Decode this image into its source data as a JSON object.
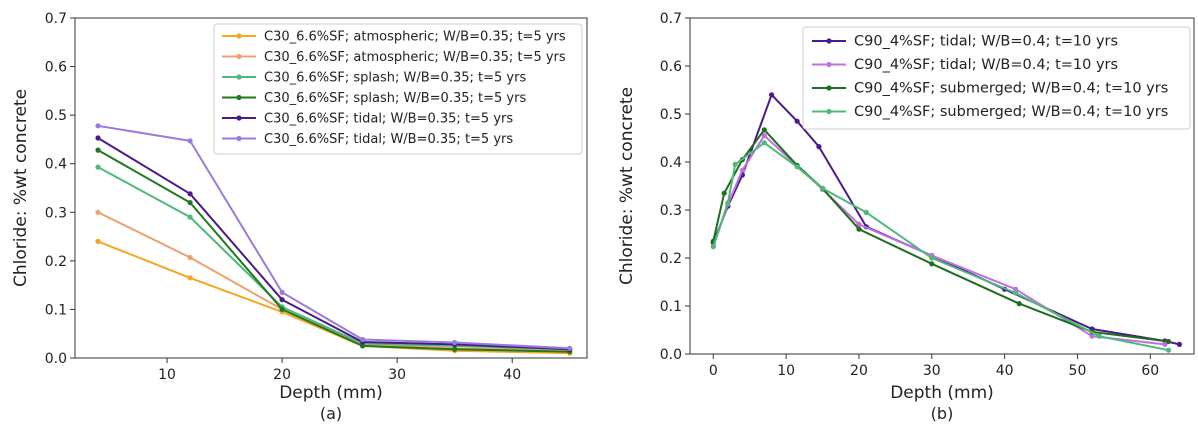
{
  "chart_data": [
    {
      "type": "line",
      "caption": "(a)",
      "xlabel": "Depth (mm)",
      "ylabel": "Chloride: %wt concrete",
      "xlim": [
        2,
        46.5
      ],
      "ylim": [
        0,
        0.7
      ],
      "xticks": [
        10,
        20,
        30,
        40
      ],
      "yticks": [
        0.0,
        0.1,
        0.2,
        0.3,
        0.4,
        0.5,
        0.6,
        0.7
      ],
      "grid": false,
      "legend_position": "top-right",
      "series": [
        {
          "name": "C30_6.6%SF; atmospheric; W/B=0.35; t=5 yrs",
          "color": "#f5a623",
          "x": [
            4,
            12,
            20,
            27,
            35,
            45
          ],
          "y": [
            0.24,
            0.165,
            0.095,
            0.025,
            0.015,
            0.01
          ]
        },
        {
          "name": "C30_6.6%SF; atmospheric; W/B=0.35; t=5 yrs",
          "color": "#f0a070",
          "x": [
            4,
            12,
            20,
            27,
            35,
            45
          ],
          "y": [
            0.3,
            0.207,
            0.1,
            0.028,
            0.02,
            0.015
          ]
        },
        {
          "name": "C30_6.6%SF; splash; W/B=0.35; t=5 yrs",
          "color": "#4fb87a",
          "x": [
            4,
            12,
            20,
            27,
            35,
            45
          ],
          "y": [
            0.393,
            0.29,
            0.105,
            0.03,
            0.025,
            0.018
          ]
        },
        {
          "name": "C30_6.6%SF; splash; W/B=0.35; t=5 yrs",
          "color": "#1e7a1e",
          "x": [
            4,
            12,
            20,
            27,
            35,
            45
          ],
          "y": [
            0.428,
            0.32,
            0.1,
            0.025,
            0.018,
            0.013
          ]
        },
        {
          "name": "C30_6.6%SF; tidal; W/B=0.35; t=5 yrs",
          "color": "#4b1a8a",
          "x": [
            4,
            12,
            20,
            27,
            35,
            45
          ],
          "y": [
            0.453,
            0.338,
            0.12,
            0.033,
            0.028,
            0.018
          ]
        },
        {
          "name": "C30_6.6%SF; tidal; W/B=0.35; t=5 yrs",
          "color": "#9b7ae0",
          "x": [
            4,
            12,
            20,
            27,
            35,
            45
          ],
          "y": [
            0.478,
            0.447,
            0.135,
            0.038,
            0.032,
            0.02
          ]
        }
      ]
    },
    {
      "type": "line",
      "caption": "(b)",
      "xlabel": "Depth (mm)",
      "ylabel": "Chloride: %wt concrete",
      "xlim": [
        -3.2,
        66
      ],
      "ylim": [
        0,
        0.7
      ],
      "xticks": [
        0,
        10,
        20,
        30,
        40,
        50,
        60
      ],
      "yticks": [
        0.0,
        0.1,
        0.2,
        0.3,
        0.4,
        0.5,
        0.6,
        0.7
      ],
      "grid": false,
      "legend_position": "top-right",
      "series": [
        {
          "name": "C90_4%SF; tidal; W/B=0.4; t=10 yrs",
          "color": "#4b1a8a",
          "x": [
            0,
            2,
            4,
            8,
            11.5,
            14.5,
            21,
            30,
            40,
            52,
            62,
            64
          ],
          "y": [
            0.232,
            0.308,
            0.373,
            0.54,
            0.485,
            0.432,
            0.265,
            0.205,
            0.135,
            0.052,
            0.027,
            0.02
          ]
        },
        {
          "name": "C90_4%SF; tidal; W/B=0.4; t=10 yrs",
          "color": "#c070e0",
          "x": [
            0,
            2,
            4,
            7,
            11.5,
            15,
            20,
            30,
            41.5,
            52,
            62
          ],
          "y": [
            0.224,
            0.312,
            0.383,
            0.455,
            0.392,
            0.343,
            0.27,
            0.205,
            0.135,
            0.037,
            0.02
          ]
        },
        {
          "name": "C90_4%SF; submerged; W/B=0.4; t=10 yrs",
          "color": "#1e6e1e",
          "x": [
            0,
            1.5,
            4,
            7,
            11.5,
            15,
            20,
            30,
            42,
            52,
            62.5
          ],
          "y": [
            0.235,
            0.335,
            0.405,
            0.467,
            0.393,
            0.345,
            0.26,
            0.188,
            0.105,
            0.046,
            0.026
          ]
        },
        {
          "name": "C90_4%SF; submerged; W/B=0.4; t=10 yrs",
          "color": "#4fb87a",
          "x": [
            0,
            2,
            3,
            7,
            11.5,
            15,
            21,
            30,
            41.5,
            53,
            62.5
          ],
          "y": [
            0.224,
            0.315,
            0.395,
            0.44,
            0.39,
            0.345,
            0.295,
            0.2,
            0.127,
            0.037,
            0.008
          ]
        }
      ]
    }
  ]
}
